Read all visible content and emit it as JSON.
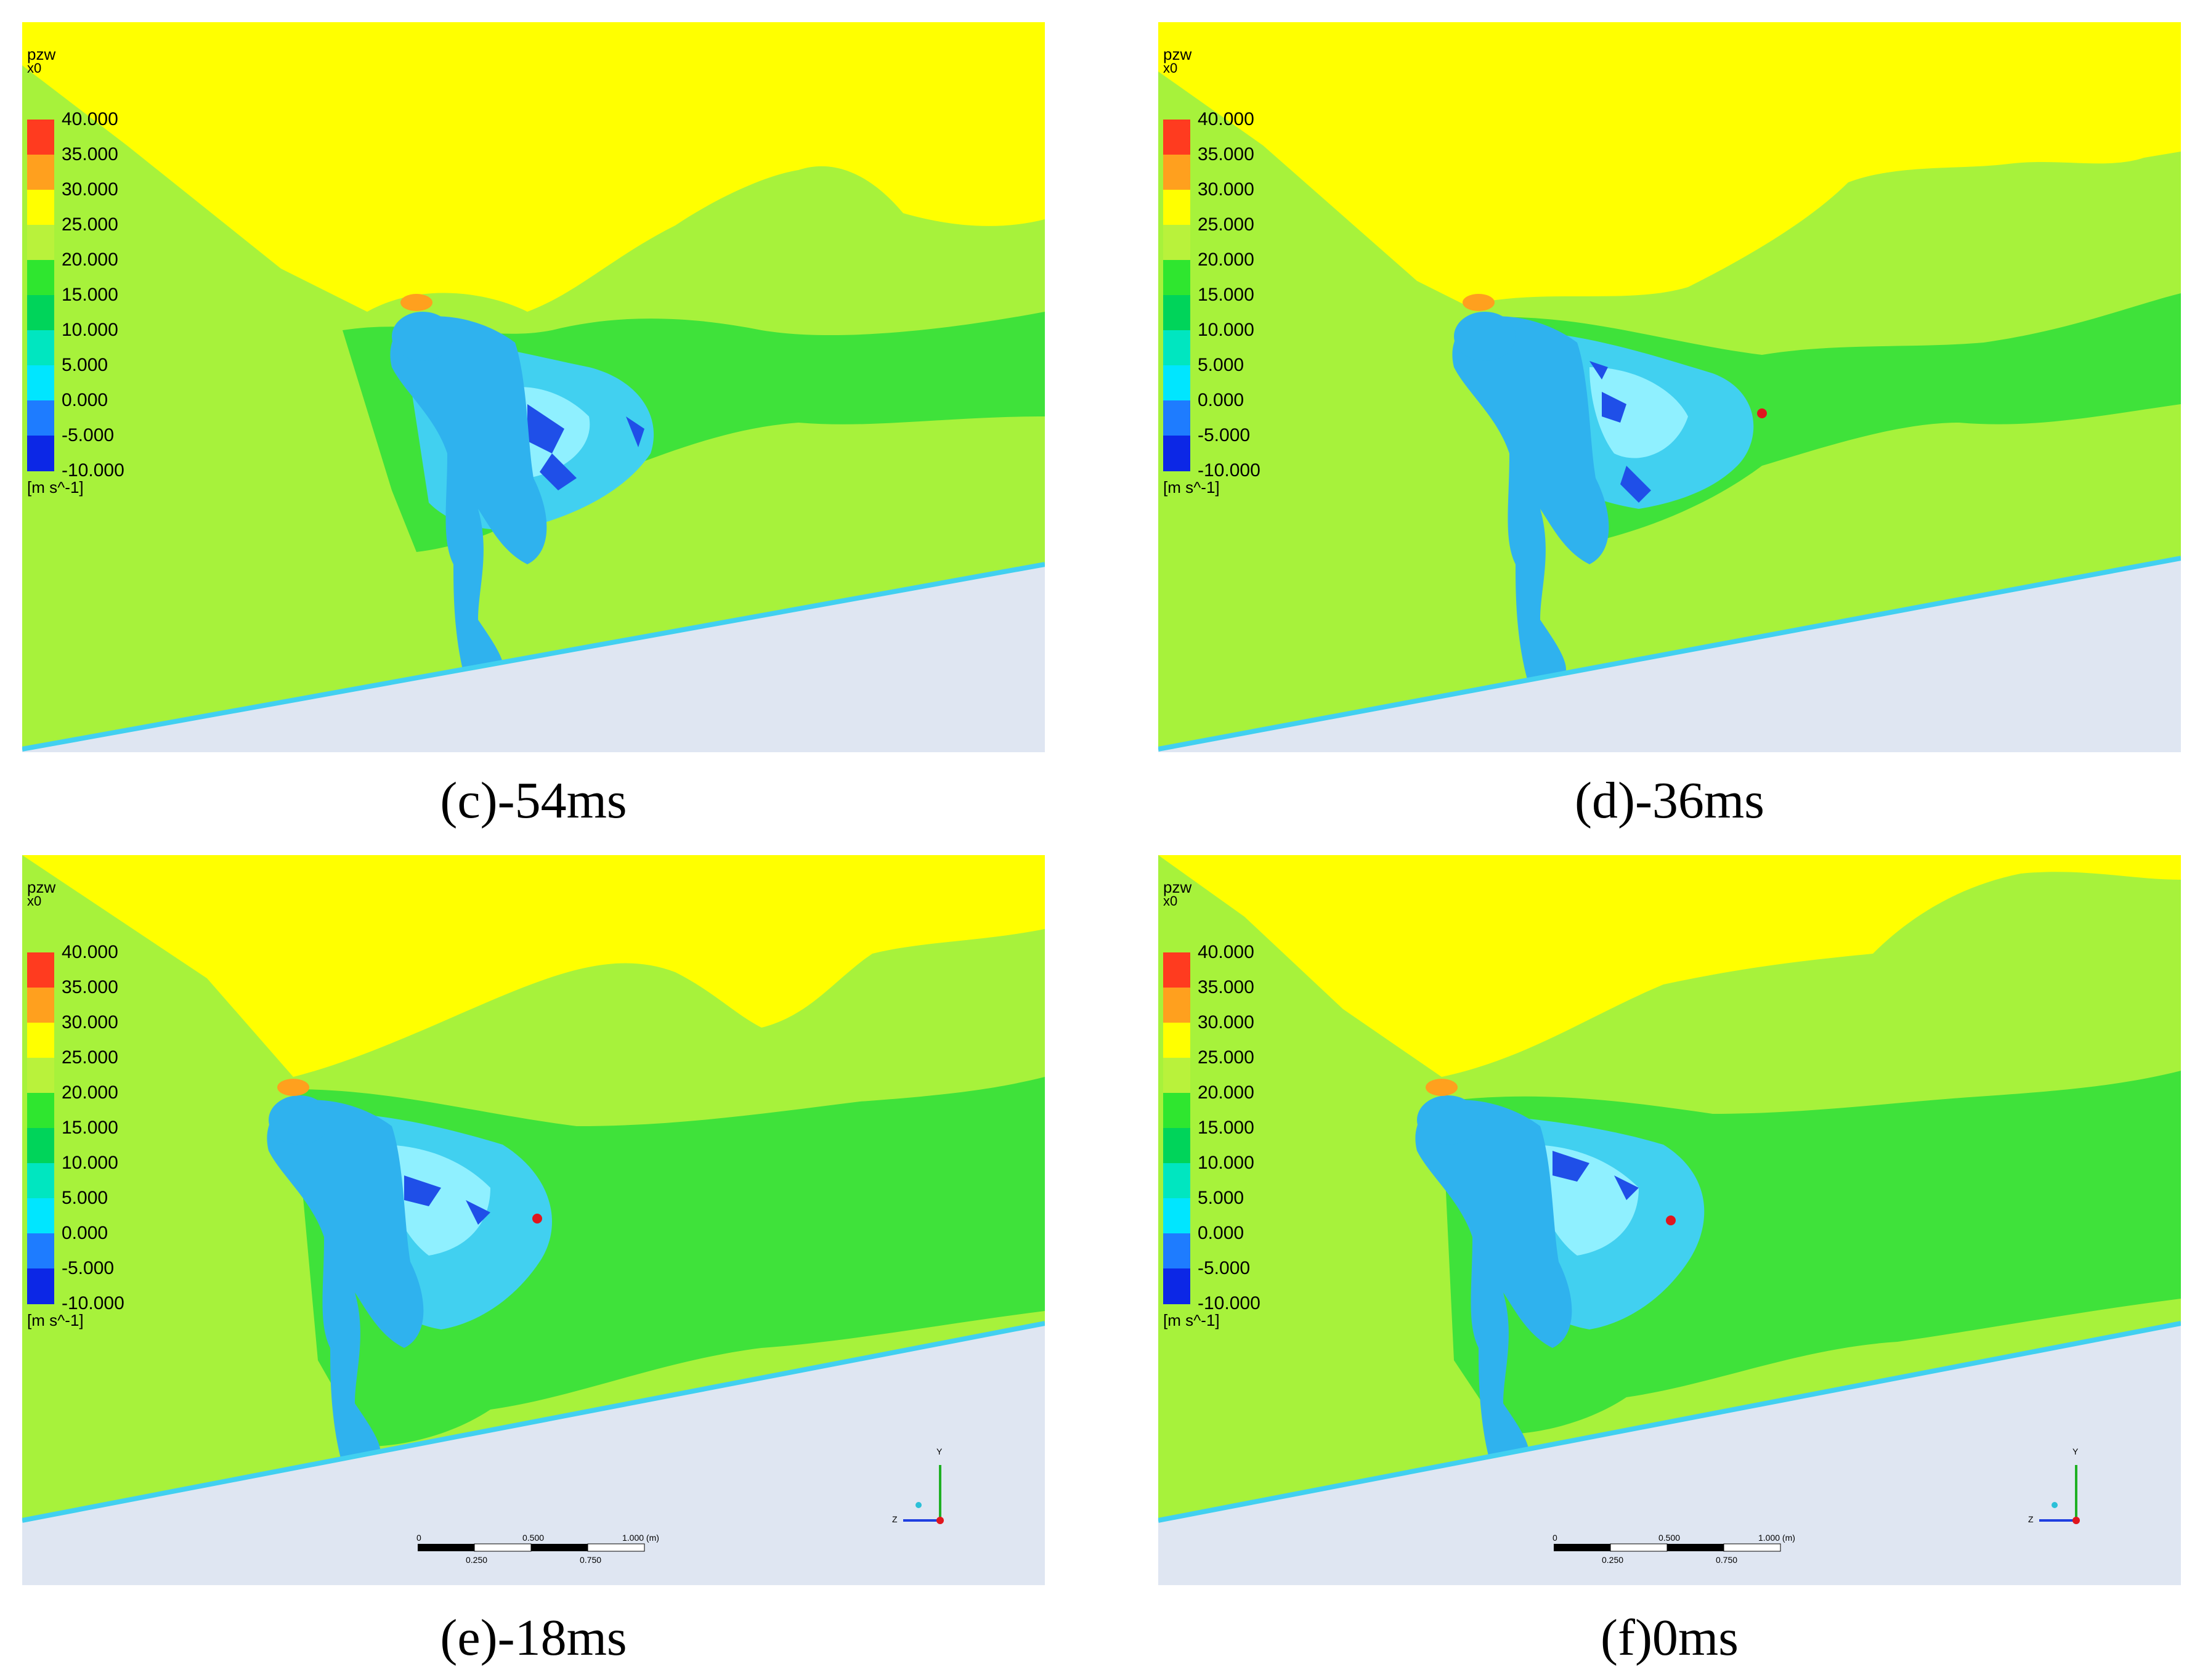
{
  "legend": {
    "variable": "pzw",
    "multiplier": "x0",
    "unit": "[m s^-1]",
    "ticks": [
      "40.000",
      "35.000",
      "30.000",
      "25.000",
      "20.000",
      "15.000",
      "10.000",
      "5.000",
      "0.000",
      "-5.000",
      "-10.000"
    ],
    "band_colors": [
      "#ff3b1f",
      "#ffa01e",
      "#ffff00",
      "#b9f23b",
      "#2fe62f",
      "#00d45a",
      "#00e6c0",
      "#00e6ff",
      "#1e7cff",
      "#0c27e6"
    ]
  },
  "colors": {
    "background_yellow": "#ffff00",
    "main_green": "#a7f23b",
    "dark_green": "#3fe23a",
    "cyan": "#41d0f0",
    "light_cyan": "#8ff0ff",
    "blue": "#1f4fe8",
    "body_blue": "#2fb2ee",
    "ground": "#dfe6f2",
    "probe": "#e0161e"
  },
  "panels": [
    {
      "caption": "(c)-54ms"
    },
    {
      "caption": "(d)-36ms"
    },
    {
      "caption": "(e)-18ms",
      "scale": {
        "top": [
          "0",
          "0.500",
          "1.000 (m)"
        ],
        "bottom": [
          "0.250",
          "0.750"
        ]
      },
      "axes": {
        "y": "Y",
        "z": "Z"
      }
    },
    {
      "caption": "(f)0ms",
      "scale": {
        "top": [
          "0",
          "0.500",
          "1.000 (m)"
        ],
        "bottom": [
          "0.250",
          "0.750"
        ]
      },
      "axes": {
        "y": "Y",
        "z": "Z"
      }
    }
  ]
}
